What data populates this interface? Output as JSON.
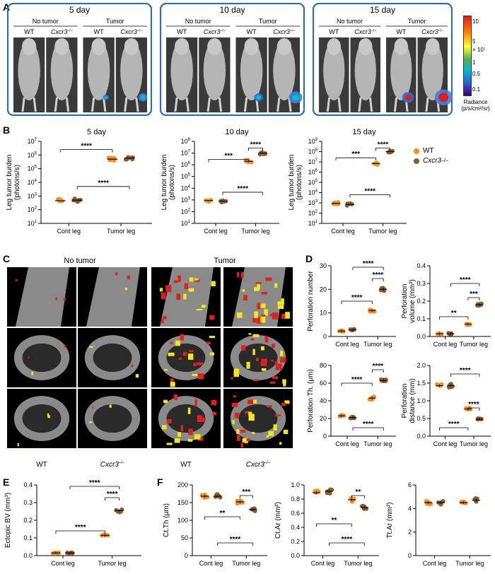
{
  "figure": {
    "panel_labels": [
      "A",
      "B",
      "C",
      "D",
      "E",
      "F"
    ],
    "genotype_wt": "WT",
    "genotype_ko": "Cxcr3",
    "ko_superscript": "–/–",
    "groups": [
      "No tumor",
      "Tumor"
    ],
    "days": [
      "5 day",
      "10 day",
      "15 day"
    ],
    "colorbar": {
      "ticks": [
        "10",
        "5",
        "× 10⁷",
        "1",
        "0.5",
        "0.1"
      ],
      "label1": "Radiance",
      "label2": "(p/s/cm²/sr)"
    },
    "legend": {
      "wt": "WT",
      "ko": "Cxcr3",
      "ko_sup": "–/–",
      "wt_color": "#f5901e",
      "ko_color": "#8b5a2b"
    },
    "ct_headers": [
      "No tumor",
      "Tumor"
    ],
    "ct_footers": [
      "WT",
      "Cxcr3",
      "WT",
      "Cxcr3"
    ],
    "cont_leg": "Cont leg",
    "tumor_leg": "Tumor leg"
  },
  "chart_data": [
    {
      "panel": "B",
      "type": "scatter",
      "title": "5 day",
      "ylabel": "Leg tumor burden (photons/s)",
      "yscale": "log",
      "ylim": [
        10,
        10000000
      ],
      "categories": [
        "Cont leg",
        "Tumor leg"
      ],
      "series": [
        {
          "name": "WT",
          "values": [
            450,
            500000
          ]
        },
        {
          "name": "Cxcr3–/–",
          "values": [
            500,
            600000
          ]
        }
      ],
      "sig": [
        "****",
        "****"
      ]
    },
    {
      "panel": "B",
      "type": "scatter",
      "title": "10 day",
      "ylabel": "Leg tumor burden (photons/s)",
      "yscale": "log",
      "ylim": [
        10,
        100000000
      ],
      "categories": [
        "Cont leg",
        "Tumor leg"
      ],
      "series": [
        {
          "name": "WT",
          "values": [
            900,
            2000000
          ]
        },
        {
          "name": "Cxcr3–/–",
          "values": [
            800,
            10000000
          ]
        }
      ],
      "sig": [
        "***",
        "****",
        "****"
      ]
    },
    {
      "panel": "B",
      "type": "scatter",
      "title": "15 day",
      "ylabel": "Leg tumor burden (photons/s)",
      "yscale": "log",
      "ylim": [
        10,
        1000000000
      ],
      "categories": [
        "Cont leg",
        "Tumor leg"
      ],
      "series": [
        {
          "name": "WT",
          "values": [
            900,
            7000000
          ]
        },
        {
          "name": "Cxcr3–/–",
          "values": [
            700,
            100000000
          ]
        }
      ],
      "sig": [
        "***",
        "****",
        "****"
      ]
    },
    {
      "panel": "D",
      "type": "scatter",
      "ylabel": "Perforation number",
      "ylim": [
        0,
        30
      ],
      "categories": [
        "Cont leg",
        "Tumor leg"
      ],
      "series": [
        {
          "name": "WT",
          "values": [
            2.3,
            11
          ]
        },
        {
          "name": "Cxcr3–/–",
          "values": [
            2.8,
            20
          ]
        }
      ],
      "sig": [
        "****",
        "****",
        "****"
      ]
    },
    {
      "panel": "D",
      "type": "scatter",
      "ylabel": "Perforation volume (mm³)",
      "ylim": [
        0,
        0.4
      ],
      "categories": [
        "Cont leg",
        "Tumor leg"
      ],
      "series": [
        {
          "name": "WT",
          "values": [
            0.015,
            0.07
          ]
        },
        {
          "name": "Cxcr3–/–",
          "values": [
            0.015,
            0.18
          ]
        }
      ],
      "sig": [
        "**",
        "***",
        "****"
      ]
    },
    {
      "panel": "D",
      "type": "scatter",
      "ylabel": "Perforation Th. (μm)",
      "ylim": [
        0,
        80
      ],
      "categories": [
        "Cont leg",
        "Tumor leg"
      ],
      "series": [
        {
          "name": "WT",
          "values": [
            23,
            43
          ]
        },
        {
          "name": "Cxcr3–/–",
          "values": [
            21,
            63
          ]
        }
      ],
      "sig": [
        "****",
        "****",
        "****"
      ]
    },
    {
      "panel": "D",
      "type": "scatter",
      "ylabel": "Perforation distance (mm)",
      "ylim": [
        0,
        2.0
      ],
      "categories": [
        "Cont leg",
        "Tumor leg"
      ],
      "series": [
        {
          "name": "WT",
          "values": [
            1.43,
            0.77
          ]
        },
        {
          "name": "Cxcr3–/–",
          "values": [
            1.43,
            0.48
          ]
        }
      ],
      "sig": [
        "****",
        "****",
        "****"
      ]
    },
    {
      "panel": "E",
      "type": "scatter",
      "ylabel": "Ectopic BV (mm³)",
      "ylim": [
        0,
        0.4
      ],
      "categories": [
        "Cont leg",
        "Tumor leg"
      ],
      "series": [
        {
          "name": "WT",
          "values": [
            0.015,
            0.115
          ]
        },
        {
          "name": "Cxcr3–/–",
          "values": [
            0.015,
            0.255
          ]
        }
      ],
      "sig": [
        "****",
        "****",
        "****"
      ]
    },
    {
      "panel": "F",
      "type": "scatter",
      "ylabel": "Ct.Th (μm)",
      "ylim": [
        0,
        200
      ],
      "categories": [
        "Cont leg",
        "Tumor leg"
      ],
      "series": [
        {
          "name": "WT",
          "values": [
            168,
            152
          ]
        },
        {
          "name": "Cxcr3–/–",
          "values": [
            168,
            130
          ]
        }
      ],
      "sig": [
        "**",
        "***",
        "****"
      ]
    },
    {
      "panel": "F",
      "type": "scatter",
      "ylabel": "Ct.Ar (mm²)",
      "ylim": [
        0,
        1.0
      ],
      "categories": [
        "Cont leg",
        "Tumor leg"
      ],
      "series": [
        {
          "name": "WT",
          "values": [
            0.89,
            0.79
          ]
        },
        {
          "name": "Cxcr3–/–",
          "values": [
            0.91,
            0.68
          ]
        }
      ],
      "sig": [
        "**",
        "**",
        "****"
      ]
    },
    {
      "panel": "F",
      "type": "scatter",
      "ylabel": "Tt.Ar (mm²)",
      "ylim": [
        0,
        6
      ],
      "categories": [
        "Cont leg",
        "Tumor leg"
      ],
      "series": [
        {
          "name": "WT",
          "values": [
            4.5,
            4.5
          ]
        },
        {
          "name": "Cxcr3–/–",
          "values": [
            4.5,
            4.7
          ]
        }
      ],
      "sig": []
    }
  ]
}
